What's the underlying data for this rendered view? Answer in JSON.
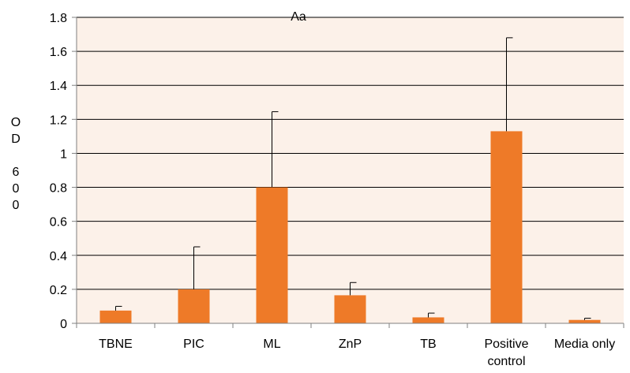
{
  "chart_data": {
    "type": "bar",
    "title": "Aa",
    "ylabel_lines": [
      "O",
      "D",
      "",
      "6",
      "0",
      "0"
    ],
    "categories": [
      [
        "TBNE"
      ],
      [
        "PIC"
      ],
      [
        "ML"
      ],
      [
        "ZnP"
      ],
      [
        "TB"
      ],
      [
        "Positive",
        "control"
      ],
      [
        "Media only"
      ]
    ],
    "values": [
      0.075,
      0.2,
      0.8,
      0.165,
      0.035,
      1.13,
      0.02
    ],
    "errors": [
      0.025,
      0.25,
      0.445,
      0.075,
      0.025,
      0.55,
      0.01
    ],
    "ylim": [
      0,
      1.8
    ],
    "yticks": [
      {
        "value": 0,
        "label": "0"
      },
      {
        "value": 0.2,
        "label": "0.2"
      },
      {
        "value": 0.4,
        "label": "0.4"
      },
      {
        "value": 0.6,
        "label": "0.6"
      },
      {
        "value": 0.8,
        "label": "0.8"
      },
      {
        "value": 1.0,
        "label": "1"
      },
      {
        "value": 1.2,
        "label": "1.2"
      },
      {
        "value": 1.4,
        "label": "1.4"
      },
      {
        "value": 1.6,
        "label": "1.6"
      },
      {
        "value": 1.8,
        "label": "1.8"
      }
    ],
    "grid": true,
    "colors": {
      "bar": "#ee7a28",
      "plot_background": "#fcf1e9",
      "grid": "#000000",
      "axis": "#808080",
      "error_bar": "#000000"
    }
  }
}
